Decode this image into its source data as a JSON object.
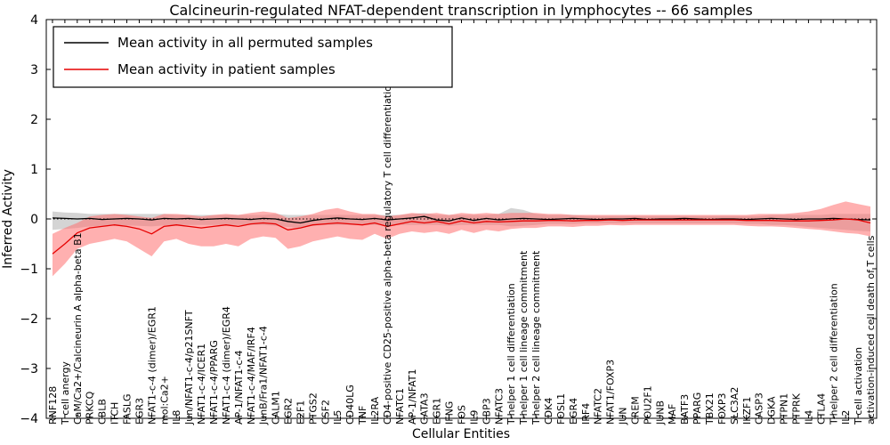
{
  "figure": {
    "title": "Calcineurin-regulated NFAT-dependent transcription in lymphocytes -- 66 samples",
    "xlabel": "Cellular Entities",
    "ylabel": "Inferred Activity"
  },
  "chart_data": {
    "type": "line",
    "title": "Calcineurin-regulated NFAT-dependent transcription in lymphocytes -- 66 samples",
    "xlabel": "Cellular Entities",
    "ylabel": "Inferred Activity",
    "ylim": [
      -4,
      4
    ],
    "yticks": [
      -4,
      -3,
      -2,
      -1,
      0,
      1,
      2,
      3,
      4
    ],
    "ytick_labels": [
      "−4",
      "−3",
      "−2",
      "−1",
      "0",
      "1",
      "2",
      "3",
      "4"
    ],
    "grid": false,
    "legend_position": "upper left",
    "reference_line": {
      "y": 0,
      "style": "dotted",
      "color": "#000000"
    },
    "categories": [
      "RNF128",
      "T cell anergy",
      "CaM/Ca2+/Calcineurin A alpha-beta B1",
      "PRKCQ",
      "CBLB",
      "ITCH",
      "FASLG",
      "EGR3",
      "NFAT1-c-4 (dimer)/EGR1",
      "mol:Ca2+",
      "IL8",
      "Jun/NFAT1-c-4/p21SNFT",
      "NFAT1-c-4/ICER1",
      "NFAT1-c-4/PPARG",
      "NFAT1-c-4 (dimer)/EGR4",
      "AP-1/NFAT1-c-4",
      "NFAT1-c-4/MAF/IRF4",
      "JunB/Fra1/NFAT1-c-4",
      "CALM1",
      "EGR2",
      "E2F1",
      "PTGS2",
      "CSF2",
      "IL5",
      "CD40LG",
      "TNF",
      "IL2RA",
      "CD4-positive CD25-positive alpha-beta regulatory T cell differentiation",
      "NFATC1",
      "AP-1/NFAT1",
      "GATA3",
      "EGR1",
      "IFNG",
      "FOS",
      "IL9",
      "GBP3",
      "NFATC3",
      "T-helper 1 cell differentiation",
      "T-helper 1 cell lineage commitment",
      "T-helper 2 cell lineage commitment",
      "CDK4",
      "FOSL1",
      "EGR4",
      "IRF4",
      "NFATC2",
      "NFAT1/FOXP3",
      "JUN",
      "CREM",
      "POU2F1",
      "JUNB",
      "MAF",
      "BATF3",
      "PPARG",
      "TBX21",
      "FOXP3",
      "SLC3A2",
      "IKZF1",
      "CASP3",
      "DGKA",
      "PTPN1",
      "PTPRK",
      "IL4",
      "CTLA4",
      "T-helper 2 cell differentiation",
      "IL2",
      "T cell activation",
      "activation-induced cell death of T cells"
    ],
    "series": [
      {
        "key": "permuted",
        "name": "Mean activity in all permuted samples",
        "line_color": "#000000",
        "band_color": "#aaaaaa",
        "band_opacity": 0.5,
        "mean": [
          0.02,
          0.01,
          0.0,
          0.01,
          -0.01,
          0.0,
          0.01,
          0.0,
          -0.02,
          0.01,
          0.0,
          0.01,
          -0.01,
          0.0,
          0.01,
          0.0,
          -0.01,
          0.01,
          0.0,
          -0.05,
          -0.08,
          -0.03,
          0.0,
          0.02,
          0.0,
          -0.01,
          0.01,
          -0.02,
          0.0,
          0.02,
          0.05,
          -0.02,
          -0.04,
          0.02,
          -0.03,
          0.01,
          -0.02,
          0.0,
          0.01,
          0.0,
          -0.01,
          0.0,
          0.01,
          0.0,
          -0.01,
          0.0,
          0.0,
          0.01,
          -0.01,
          0.0,
          0.0,
          0.01,
          0.0,
          -0.01,
          0.0,
          0.0,
          -0.01,
          0.0,
          0.01,
          0.0,
          -0.01,
          0.0,
          0.0,
          0.01,
          0.0,
          -0.01,
          -0.02
        ],
        "upper": [
          0.15,
          0.13,
          0.12,
          0.1,
          0.1,
          0.1,
          0.1,
          0.1,
          0.1,
          0.1,
          0.08,
          0.08,
          0.08,
          0.08,
          0.08,
          0.08,
          0.08,
          0.08,
          0.1,
          0.08,
          0.08,
          0.08,
          0.08,
          0.08,
          0.08,
          0.08,
          0.08,
          0.08,
          0.08,
          0.1,
          0.12,
          0.08,
          0.08,
          0.08,
          0.08,
          0.08,
          0.1,
          0.22,
          0.18,
          0.1,
          0.08,
          0.08,
          0.08,
          0.06,
          0.06,
          0.06,
          0.06,
          0.06,
          0.06,
          0.06,
          0.06,
          0.06,
          0.06,
          0.06,
          0.06,
          0.06,
          0.06,
          0.06,
          0.08,
          0.08,
          0.08,
          0.08,
          0.08,
          0.1,
          0.1,
          0.1,
          0.1
        ],
        "lower": [
          -0.22,
          -0.2,
          -0.18,
          -0.15,
          -0.14,
          -0.13,
          -0.13,
          -0.14,
          -0.15,
          -0.13,
          -0.12,
          -0.12,
          -0.12,
          -0.12,
          -0.12,
          -0.12,
          -0.12,
          -0.12,
          -0.14,
          -0.16,
          -0.18,
          -0.14,
          -0.12,
          -0.12,
          -0.12,
          -0.12,
          -0.12,
          -0.12,
          -0.12,
          -0.12,
          -0.12,
          -0.12,
          -0.14,
          -0.12,
          -0.12,
          -0.12,
          -0.12,
          -0.15,
          -0.14,
          -0.12,
          -0.1,
          -0.1,
          -0.1,
          -0.09,
          -0.09,
          -0.09,
          -0.09,
          -0.09,
          -0.09,
          -0.09,
          -0.09,
          -0.09,
          -0.09,
          -0.09,
          -0.09,
          -0.09,
          -0.1,
          -0.1,
          -0.12,
          -0.12,
          -0.14,
          -0.16,
          -0.18,
          -0.2,
          -0.22,
          -0.24,
          -0.25
        ]
      },
      {
        "key": "patient",
        "name": "Mean activity in patient samples",
        "line_color": "#e60000",
        "band_color": "#ff7070",
        "band_opacity": 0.55,
        "mean": [
          -0.7,
          -0.5,
          -0.28,
          -0.18,
          -0.15,
          -0.12,
          -0.15,
          -0.2,
          -0.3,
          -0.15,
          -0.12,
          -0.15,
          -0.18,
          -0.15,
          -0.12,
          -0.15,
          -0.1,
          -0.08,
          -0.1,
          -0.22,
          -0.18,
          -0.12,
          -0.1,
          -0.08,
          -0.1,
          -0.12,
          -0.08,
          -0.15,
          -0.1,
          -0.05,
          -0.08,
          -0.05,
          -0.1,
          -0.04,
          -0.08,
          -0.05,
          -0.06,
          -0.05,
          -0.04,
          -0.04,
          -0.03,
          -0.03,
          -0.04,
          -0.03,
          -0.03,
          -0.02,
          -0.03,
          -0.02,
          -0.02,
          -0.02,
          -0.02,
          -0.02,
          -0.02,
          -0.02,
          -0.02,
          -0.02,
          -0.03,
          -0.03,
          -0.03,
          -0.04,
          -0.04,
          -0.04,
          -0.03,
          -0.02,
          0.0,
          -0.02,
          -0.08
        ],
        "upper": [
          -0.3,
          -0.18,
          -0.08,
          0.05,
          0.08,
          0.1,
          0.08,
          0.05,
          0.02,
          0.1,
          0.1,
          0.08,
          0.05,
          0.08,
          0.1,
          0.08,
          0.12,
          0.15,
          0.12,
          0.02,
          0.05,
          0.1,
          0.18,
          0.22,
          0.15,
          0.1,
          0.1,
          0.05,
          0.08,
          0.12,
          0.1,
          0.12,
          0.08,
          0.12,
          0.1,
          0.12,
          0.1,
          0.12,
          0.12,
          0.12,
          0.1,
          0.1,
          0.08,
          0.08,
          0.08,
          0.08,
          0.08,
          0.08,
          0.08,
          0.08,
          0.08,
          0.08,
          0.08,
          0.08,
          0.08,
          0.08,
          0.08,
          0.1,
          0.1,
          0.1,
          0.12,
          0.15,
          0.2,
          0.28,
          0.35,
          0.3,
          0.25
        ],
        "lower": [
          -1.15,
          -0.9,
          -0.6,
          -0.5,
          -0.45,
          -0.4,
          -0.45,
          -0.6,
          -0.75,
          -0.45,
          -0.4,
          -0.5,
          -0.55,
          -0.55,
          -0.5,
          -0.55,
          -0.4,
          -0.35,
          -0.38,
          -0.6,
          -0.55,
          -0.45,
          -0.4,
          -0.35,
          -0.4,
          -0.42,
          -0.3,
          -0.4,
          -0.3,
          -0.25,
          -0.28,
          -0.25,
          -0.3,
          -0.22,
          -0.28,
          -0.22,
          -0.25,
          -0.2,
          -0.18,
          -0.18,
          -0.15,
          -0.15,
          -0.16,
          -0.14,
          -0.14,
          -0.12,
          -0.13,
          -0.12,
          -0.12,
          -0.12,
          -0.12,
          -0.12,
          -0.12,
          -0.12,
          -0.12,
          -0.12,
          -0.14,
          -0.15,
          -0.15,
          -0.16,
          -0.18,
          -0.2,
          -0.22,
          -0.25,
          -0.28,
          -0.3,
          -0.35
        ]
      }
    ]
  }
}
